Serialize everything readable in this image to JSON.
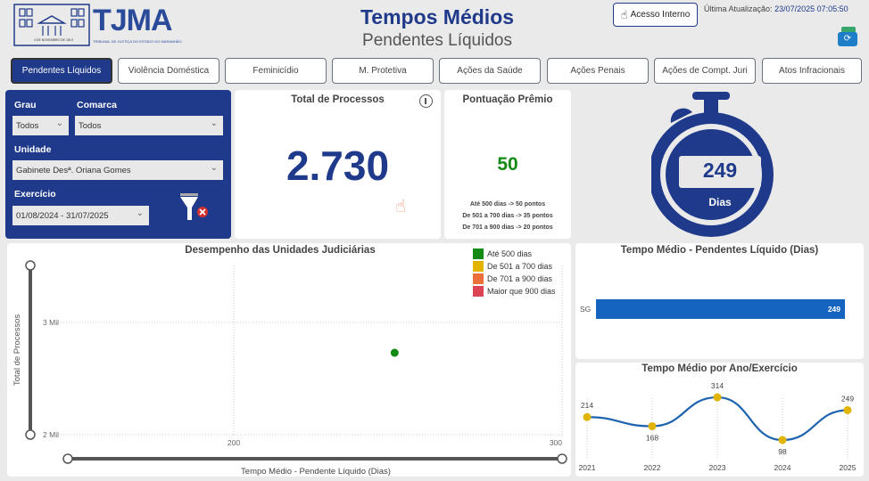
{
  "header": {
    "logo_text": "TJMA",
    "logo_subtext": "TRIBUNAL DE JUSTIÇA DO ESTADO DO MARANHÃO",
    "logo_seal_text": "4 DE NOVEMBRO DE 1813",
    "title": "Tempos Médios",
    "subtitle": "Pendentes Líquidos",
    "access_button": "Acesso Interno",
    "last_update_label": "Última Atualização:",
    "last_update_value": "23/07/2025 07:05:50",
    "colors": {
      "brand": "#1f3a8a",
      "title": "#1f3a8a"
    }
  },
  "tabs": [
    {
      "label": "Pendentes Líquidos",
      "active": true
    },
    {
      "label": "Violência Doméstica"
    },
    {
      "label": "Feminicídio"
    },
    {
      "label": "M. Protetiva"
    },
    {
      "label": "Ações da Saúde"
    },
    {
      "label": "Ações Penais"
    },
    {
      "label": "Ações de Compt. Juri"
    },
    {
      "label": "Atos Infracionais"
    }
  ],
  "filters": {
    "grau": {
      "label": "Grau",
      "value": "Todos"
    },
    "comarca": {
      "label": "Comarca",
      "value": "Todos"
    },
    "unidade": {
      "label": "Unidade",
      "value": "Gabinete Desª. Oriana Gomes"
    },
    "exercicio": {
      "label": "Exercício",
      "value": "01/08/2024 - 31/07/2025"
    }
  },
  "total_processos": {
    "title": "Total de Processos",
    "value": "2.730"
  },
  "pontuacao": {
    "title": "Pontuação Prêmio",
    "value": "50",
    "rules": [
      "Até 500 dias -> 50 pontos",
      "De 501 a 700 dias -> 35 pontos",
      "De 701 a 900 dias -> 20 pontos"
    ],
    "color": "#138a13"
  },
  "stopwatch": {
    "value": "249",
    "unit": "Dias"
  },
  "chart_data": [
    {
      "type": "scatter",
      "title": "Desempenho das Unidades Judiciárias",
      "xlabel": "Tempo Médio - Pendente Líquido (Dias)",
      "ylabel": "Total de Processos",
      "xlim": [
        200,
        300
      ],
      "ylim": [
        2000,
        3000
      ],
      "x_ticks": [
        "200",
        "300"
      ],
      "y_ticks": [
        "2 Mil",
        "3 Mil"
      ],
      "points": [
        {
          "x": 249,
          "y": 2730,
          "category": "Até 500 dias"
        }
      ],
      "legend": [
        {
          "name": "Até 500 dias",
          "color": "#138a13"
        },
        {
          "name": "De 501 a 700 dias",
          "color": "#e0b400"
        },
        {
          "name": "De 701 a 900 dias",
          "color": "#ea6f3a"
        },
        {
          "name": "Maior que 900 dias",
          "color": "#dc4456"
        }
      ],
      "legend_position": "top-right",
      "grid": true
    },
    {
      "type": "bar",
      "title": "Tempo Médio - Pendentes Líquido (Dias)",
      "orientation": "horizontal",
      "categories": [
        "SG"
      ],
      "values": [
        249
      ],
      "color": "#1565c0"
    },
    {
      "type": "line",
      "title": "Tempo Médio por Ano/Exercício",
      "categories": [
        "2021",
        "2022",
        "2023",
        "2024",
        "2025"
      ],
      "values": [
        214,
        168,
        314,
        98,
        249
      ],
      "line_color": "#1e63b0",
      "marker_color": "#e0b400"
    }
  ]
}
